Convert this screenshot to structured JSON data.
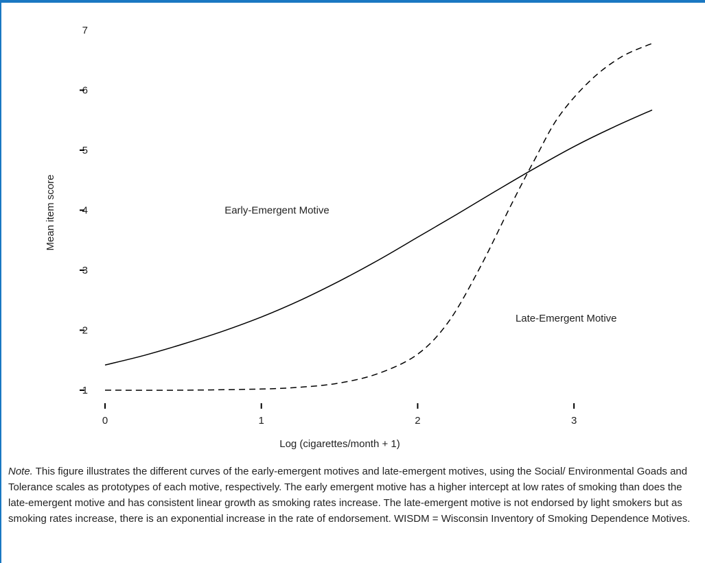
{
  "chart_data": {
    "type": "line",
    "xlabel": "Log (cigarettes/month + 1)",
    "ylabel": "Mean item score",
    "xlim": [
      0,
      3.5
    ],
    "ylim": [
      1,
      7
    ],
    "x_ticks": [
      "0",
      "1",
      "2",
      "3"
    ],
    "y_ticks": [
      "1",
      "2",
      "3",
      "4",
      "5",
      "6",
      "7"
    ],
    "grid": false,
    "legend": "none",
    "series": [
      {
        "name": "Early-Emergent Motive",
        "style": "solid",
        "color": "#000000",
        "x": [
          0,
          0.25,
          0.5,
          0.75,
          1.0,
          1.25,
          1.5,
          1.75,
          2.0,
          2.25,
          2.5,
          2.75,
          3.0,
          3.25,
          3.5
        ],
        "y": [
          1.42,
          1.58,
          1.77,
          1.98,
          2.22,
          2.5,
          2.82,
          3.17,
          3.55,
          3.93,
          4.32,
          4.7,
          5.06,
          5.38,
          5.67
        ]
      },
      {
        "name": "Late-Emergent Motive",
        "style": "dashed",
        "color": "#000000",
        "x": [
          0,
          0.5,
          1.0,
          1.25,
          1.5,
          1.75,
          2.0,
          2.2,
          2.4,
          2.6,
          2.75,
          2.9,
          3.1,
          3.3,
          3.5
        ],
        "y": [
          1.0,
          1.0,
          1.02,
          1.05,
          1.12,
          1.28,
          1.6,
          2.15,
          3.05,
          4.1,
          4.85,
          5.55,
          6.15,
          6.55,
          6.78
        ]
      }
    ],
    "annotations": [
      {
        "text": "Early-Emergent Motive",
        "x": 1.1,
        "y": 4.0
      },
      {
        "text": "Late-Emergent Motive",
        "x": 2.95,
        "y": 2.2
      }
    ]
  },
  "note": {
    "lead": "Note.",
    "text": " This figure illustrates the different curves of the early-emergent motives and late-emergent motives, using the Social/ Environmental Goads and Tolerance scales as prototypes of each motive, respectively. The early emergent motive has a higher intercept at low rates of smoking than does the late-emergent motive and has consistent linear growth as smoking rates increase. The late-emergent motive is not endorsed by light smokers but as smoking rates increase, there is an exponential increase in the rate of endorsement. WISDM = Wisconsin Inventory of Smoking Dependence Motives."
  },
  "colors": {
    "frame": "#1a78c2",
    "ink": "#222222"
  }
}
